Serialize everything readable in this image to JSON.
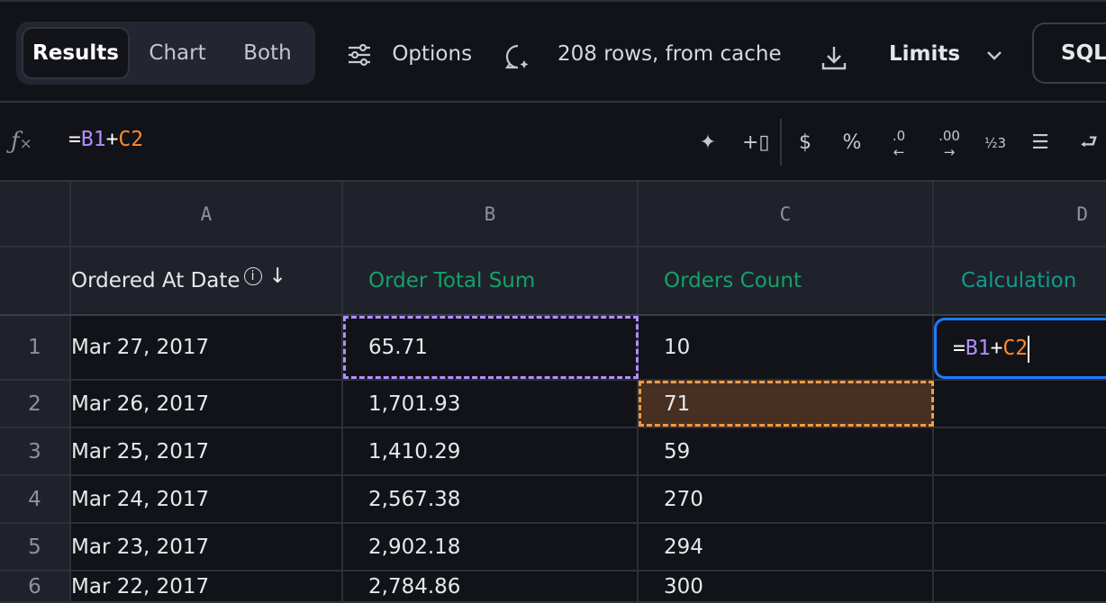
{
  "toolbar": {
    "view_tabs": [
      "Results",
      "Chart",
      "Both"
    ],
    "options_label": "Options",
    "status": "208 rows, from cache",
    "limits_label": "Limits",
    "sql_label": "SQL"
  },
  "formula_bar": {
    "eq": "=",
    "ref1": "B1",
    "plus": "+",
    "ref2": "C2",
    "ref1_color": "#b48cff",
    "ref2_color": "#ff8a2b"
  },
  "grid": {
    "column_letters": [
      "A",
      "B",
      "C",
      "D"
    ],
    "headers": [
      "Ordered At Date",
      "Order Total Sum",
      "Orders Count",
      "Calculation"
    ],
    "rows": [
      {
        "n": "1",
        "date": "Mar 27, 2017",
        "total": "65.71",
        "count": "10"
      },
      {
        "n": "2",
        "date": "Mar 26, 2017",
        "total": "1,701.93",
        "count": "71"
      },
      {
        "n": "3",
        "date": "Mar 25, 2017",
        "total": "1,410.29",
        "count": "59"
      },
      {
        "n": "4",
        "date": "Mar 24, 2017",
        "total": "2,567.38",
        "count": "270"
      },
      {
        "n": "5",
        "date": "Mar 23, 2017",
        "total": "2,902.18",
        "count": "294"
      },
      {
        "n": "6",
        "date": "Mar 22, 2017",
        "total": "2,784.86",
        "count": "300"
      }
    ]
  }
}
